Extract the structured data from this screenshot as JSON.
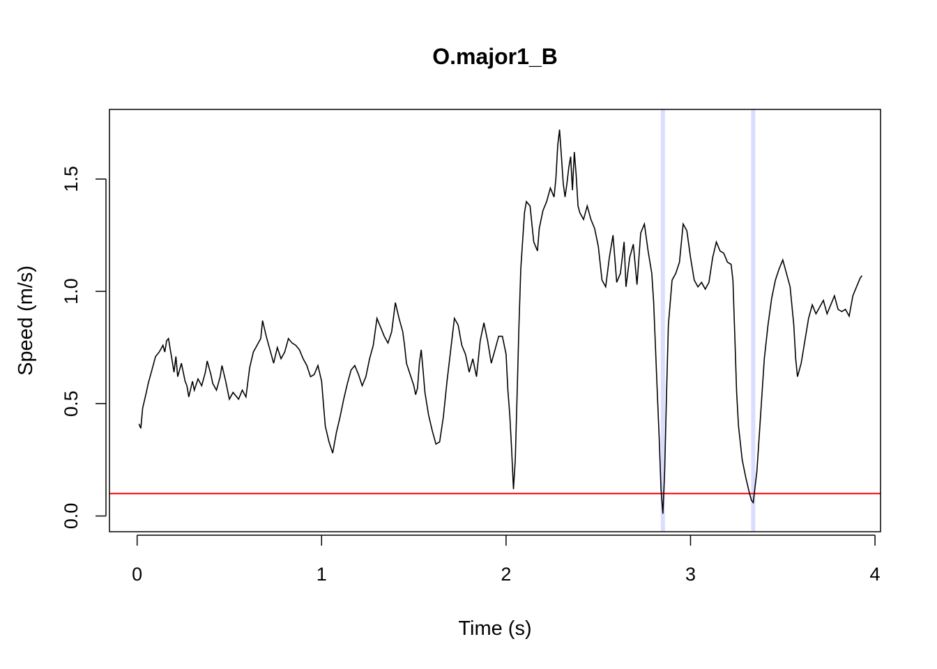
{
  "chart_data": {
    "type": "line",
    "title": "O.major1_B",
    "xlabel": "Time (s)",
    "ylabel": "Speed (m/s)",
    "xlim": [
      -0.15,
      4.03
    ],
    "ylim": [
      -0.07,
      1.81
    ],
    "x_ticks": [
      0,
      1,
      2,
      3,
      4
    ],
    "x_tick_labels": [
      "0",
      "1",
      "2",
      "3",
      "4"
    ],
    "y_ticks": [
      0.0,
      0.5,
      1.0,
      1.5
    ],
    "y_tick_labels": [
      "0.0",
      "0.5",
      "1.0",
      "1.5"
    ],
    "grid": false,
    "threshold": {
      "value": 0.1,
      "color": "#ff0000"
    },
    "highlights": [
      {
        "x": 2.85,
        "color": "#dcdcff"
      },
      {
        "x": 3.34,
        "color": "#dcdcff"
      }
    ],
    "series": [
      {
        "color": "#000000",
        "points": [
          [
            0.01,
            0.41
          ],
          [
            0.02,
            0.39
          ],
          [
            0.03,
            0.48
          ],
          [
            0.05,
            0.55
          ],
          [
            0.06,
            0.59
          ],
          [
            0.08,
            0.65
          ],
          [
            0.1,
            0.71
          ],
          [
            0.12,
            0.73
          ],
          [
            0.14,
            0.76
          ],
          [
            0.15,
            0.73
          ],
          [
            0.16,
            0.78
          ],
          [
            0.17,
            0.79
          ],
          [
            0.18,
            0.74
          ],
          [
            0.19,
            0.69
          ],
          [
            0.2,
            0.64
          ],
          [
            0.21,
            0.71
          ],
          [
            0.22,
            0.62
          ],
          [
            0.24,
            0.68
          ],
          [
            0.26,
            0.6
          ],
          [
            0.27,
            0.58
          ],
          [
            0.28,
            0.53
          ],
          [
            0.3,
            0.6
          ],
          [
            0.31,
            0.56
          ],
          [
            0.33,
            0.61
          ],
          [
            0.35,
            0.58
          ],
          [
            0.37,
            0.64
          ],
          [
            0.38,
            0.69
          ],
          [
            0.4,
            0.63
          ],
          [
            0.41,
            0.59
          ],
          [
            0.43,
            0.56
          ],
          [
            0.45,
            0.62
          ],
          [
            0.46,
            0.67
          ],
          [
            0.48,
            0.6
          ],
          [
            0.5,
            0.52
          ],
          [
            0.52,
            0.55
          ],
          [
            0.55,
            0.52
          ],
          [
            0.57,
            0.56
          ],
          [
            0.59,
            0.53
          ],
          [
            0.61,
            0.66
          ],
          [
            0.63,
            0.73
          ],
          [
            0.65,
            0.76
          ],
          [
            0.67,
            0.79
          ],
          [
            0.68,
            0.87
          ],
          [
            0.7,
            0.8
          ],
          [
            0.72,
            0.74
          ],
          [
            0.74,
            0.68
          ],
          [
            0.76,
            0.75
          ],
          [
            0.78,
            0.7
          ],
          [
            0.8,
            0.73
          ],
          [
            0.82,
            0.79
          ],
          [
            0.84,
            0.77
          ],
          [
            0.86,
            0.76
          ],
          [
            0.88,
            0.74
          ],
          [
            0.9,
            0.7
          ],
          [
            0.92,
            0.67
          ],
          [
            0.94,
            0.62
          ],
          [
            0.96,
            0.63
          ],
          [
            0.98,
            0.67
          ],
          [
            1.0,
            0.6
          ],
          [
            1.01,
            0.5
          ],
          [
            1.02,
            0.4
          ],
          [
            1.04,
            0.33
          ],
          [
            1.06,
            0.28
          ],
          [
            1.08,
            0.37
          ],
          [
            1.1,
            0.44
          ],
          [
            1.12,
            0.52
          ],
          [
            1.14,
            0.59
          ],
          [
            1.16,
            0.65
          ],
          [
            1.18,
            0.67
          ],
          [
            1.2,
            0.63
          ],
          [
            1.22,
            0.58
          ],
          [
            1.24,
            0.62
          ],
          [
            1.26,
            0.7
          ],
          [
            1.28,
            0.76
          ],
          [
            1.3,
            0.88
          ],
          [
            1.32,
            0.84
          ],
          [
            1.34,
            0.8
          ],
          [
            1.36,
            0.77
          ],
          [
            1.38,
            0.82
          ],
          [
            1.4,
            0.95
          ],
          [
            1.42,
            0.88
          ],
          [
            1.44,
            0.82
          ],
          [
            1.45,
            0.76
          ],
          [
            1.46,
            0.68
          ],
          [
            1.48,
            0.63
          ],
          [
            1.5,
            0.58
          ],
          [
            1.51,
            0.54
          ],
          [
            1.52,
            0.57
          ],
          [
            1.53,
            0.68
          ],
          [
            1.54,
            0.74
          ],
          [
            1.55,
            0.65
          ],
          [
            1.56,
            0.55
          ],
          [
            1.58,
            0.45
          ],
          [
            1.6,
            0.38
          ],
          [
            1.62,
            0.32
          ],
          [
            1.64,
            0.33
          ],
          [
            1.66,
            0.44
          ],
          [
            1.68,
            0.6
          ],
          [
            1.7,
            0.74
          ],
          [
            1.72,
            0.88
          ],
          [
            1.74,
            0.85
          ],
          [
            1.76,
            0.76
          ],
          [
            1.78,
            0.72
          ],
          [
            1.8,
            0.64
          ],
          [
            1.82,
            0.7
          ],
          [
            1.84,
            0.62
          ],
          [
            1.86,
            0.78
          ],
          [
            1.88,
            0.86
          ],
          [
            1.9,
            0.78
          ],
          [
            1.92,
            0.68
          ],
          [
            1.94,
            0.74
          ],
          [
            1.96,
            0.8
          ],
          [
            1.98,
            0.8
          ],
          [
            2.0,
            0.72
          ],
          [
            2.01,
            0.56
          ],
          [
            2.02,
            0.45
          ],
          [
            2.03,
            0.3
          ],
          [
            2.04,
            0.12
          ],
          [
            2.05,
            0.25
          ],
          [
            2.06,
            0.55
          ],
          [
            2.07,
            0.85
          ],
          [
            2.08,
            1.1
          ],
          [
            2.1,
            1.35
          ],
          [
            2.11,
            1.4
          ],
          [
            2.13,
            1.38
          ],
          [
            2.15,
            1.22
          ],
          [
            2.17,
            1.18
          ],
          [
            2.18,
            1.28
          ],
          [
            2.2,
            1.36
          ],
          [
            2.22,
            1.4
          ],
          [
            2.24,
            1.46
          ],
          [
            2.26,
            1.42
          ],
          [
            2.27,
            1.5
          ],
          [
            2.28,
            1.65
          ],
          [
            2.29,
            1.72
          ],
          [
            2.3,
            1.6
          ],
          [
            2.31,
            1.48
          ],
          [
            2.32,
            1.42
          ],
          [
            2.33,
            1.48
          ],
          [
            2.34,
            1.55
          ],
          [
            2.35,
            1.6
          ],
          [
            2.36,
            1.45
          ],
          [
            2.37,
            1.62
          ],
          [
            2.38,
            1.52
          ],
          [
            2.39,
            1.38
          ],
          [
            2.4,
            1.35
          ],
          [
            2.42,
            1.32
          ],
          [
            2.44,
            1.38
          ],
          [
            2.46,
            1.32
          ],
          [
            2.48,
            1.28
          ],
          [
            2.5,
            1.2
          ],
          [
            2.52,
            1.05
          ],
          [
            2.54,
            1.02
          ],
          [
            2.56,
            1.15
          ],
          [
            2.58,
            1.25
          ],
          [
            2.6,
            1.04
          ],
          [
            2.62,
            1.08
          ],
          [
            2.64,
            1.22
          ],
          [
            2.65,
            1.02
          ],
          [
            2.67,
            1.15
          ],
          [
            2.69,
            1.21
          ],
          [
            2.71,
            1.03
          ],
          [
            2.73,
            1.26
          ],
          [
            2.75,
            1.3
          ],
          [
            2.77,
            1.18
          ],
          [
            2.79,
            1.08
          ],
          [
            2.8,
            0.95
          ],
          [
            2.81,
            0.75
          ],
          [
            2.82,
            0.55
          ],
          [
            2.83,
            0.35
          ],
          [
            2.84,
            0.12
          ],
          [
            2.85,
            0.01
          ],
          [
            2.86,
            0.2
          ],
          [
            2.87,
            0.55
          ],
          [
            2.88,
            0.85
          ],
          [
            2.9,
            1.05
          ],
          [
            2.92,
            1.08
          ],
          [
            2.94,
            1.13
          ],
          [
            2.96,
            1.3
          ],
          [
            2.98,
            1.27
          ],
          [
            3.0,
            1.15
          ],
          [
            3.02,
            1.05
          ],
          [
            3.04,
            1.02
          ],
          [
            3.06,
            1.04
          ],
          [
            3.08,
            1.01
          ],
          [
            3.1,
            1.04
          ],
          [
            3.12,
            1.15
          ],
          [
            3.14,
            1.22
          ],
          [
            3.16,
            1.18
          ],
          [
            3.18,
            1.17
          ],
          [
            3.2,
            1.13
          ],
          [
            3.22,
            1.12
          ],
          [
            3.23,
            1.05
          ],
          [
            3.24,
            0.8
          ],
          [
            3.25,
            0.55
          ],
          [
            3.26,
            0.4
          ],
          [
            3.28,
            0.25
          ],
          [
            3.3,
            0.17
          ],
          [
            3.32,
            0.1
          ],
          [
            3.33,
            0.07
          ],
          [
            3.34,
            0.06
          ],
          [
            3.36,
            0.2
          ],
          [
            3.38,
            0.45
          ],
          [
            3.4,
            0.7
          ],
          [
            3.42,
            0.85
          ],
          [
            3.44,
            0.97
          ],
          [
            3.46,
            1.05
          ],
          [
            3.48,
            1.1
          ],
          [
            3.5,
            1.14
          ],
          [
            3.52,
            1.08
          ],
          [
            3.54,
            1.02
          ],
          [
            3.56,
            0.85
          ],
          [
            3.57,
            0.7
          ],
          [
            3.58,
            0.62
          ],
          [
            3.6,
            0.68
          ],
          [
            3.62,
            0.78
          ],
          [
            3.64,
            0.88
          ],
          [
            3.66,
            0.94
          ],
          [
            3.68,
            0.9
          ],
          [
            3.7,
            0.93
          ],
          [
            3.72,
            0.96
          ],
          [
            3.74,
            0.9
          ],
          [
            3.76,
            0.94
          ],
          [
            3.78,
            0.98
          ],
          [
            3.8,
            0.92
          ],
          [
            3.82,
            0.91
          ],
          [
            3.84,
            0.92
          ],
          [
            3.86,
            0.89
          ],
          [
            3.88,
            0.98
          ],
          [
            3.9,
            1.02
          ],
          [
            3.92,
            1.06
          ],
          [
            3.93,
            1.07
          ]
        ]
      }
    ]
  }
}
